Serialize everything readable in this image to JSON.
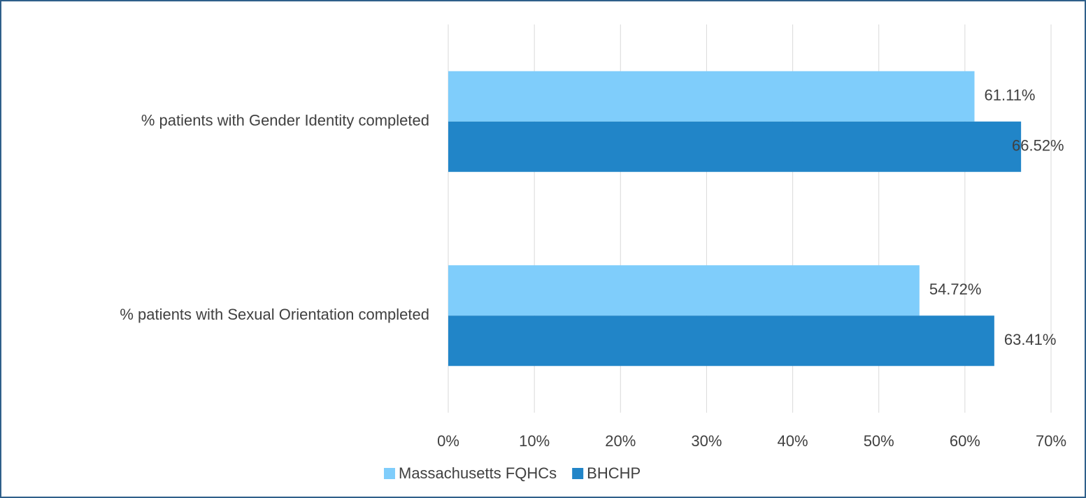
{
  "chart_data": {
    "type": "bar",
    "orientation": "horizontal",
    "categories": [
      "% patients with Gender Identity completed",
      "% patients with Sexual Orientation completed"
    ],
    "series": [
      {
        "name": "Massachusetts FQHCs",
        "color": "#7fcdfb",
        "values": [
          61.11,
          54.72
        ],
        "value_labels": [
          "61.11%",
          "54.72%"
        ]
      },
      {
        "name": "BHCHP",
        "color": "#2185c8",
        "values": [
          66.52,
          63.41
        ],
        "value_labels": [
          "66.52%",
          "63.41%"
        ]
      }
    ],
    "xlim": [
      0,
      70
    ],
    "xticks": [
      {
        "value": 0,
        "label": "0%"
      },
      {
        "value": 10,
        "label": "10%"
      },
      {
        "value": 20,
        "label": "20%"
      },
      {
        "value": 30,
        "label": "30%"
      },
      {
        "value": 40,
        "label": "40%"
      },
      {
        "value": 50,
        "label": "50%"
      },
      {
        "value": 60,
        "label": "60%"
      },
      {
        "value": 70,
        "label": "70%"
      }
    ],
    "grid": true,
    "legend": "bottom"
  }
}
